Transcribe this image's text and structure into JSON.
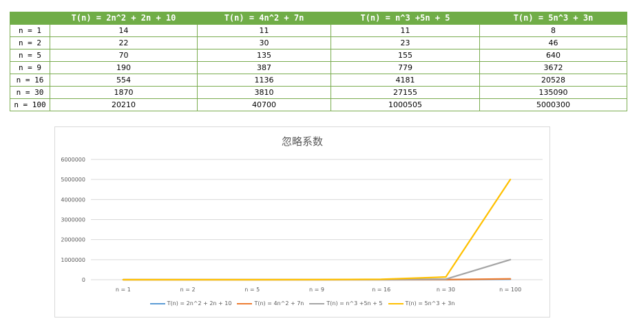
{
  "table": {
    "headers": [
      "",
      "T(n) = 2n^2 + 2n + 10",
      "T(n) = 4n^2 + 7n",
      "T(n) = n^3 +5n + 5",
      "T(n) = 5n^3 + 3n"
    ],
    "rows": [
      [
        "n = 1",
        "14",
        "11",
        "11",
        "8"
      ],
      [
        "n = 2",
        "22",
        "30",
        "23",
        "46"
      ],
      [
        "n = 5",
        "70",
        "135",
        "155",
        "640"
      ],
      [
        "n = 9",
        "190",
        "387",
        "779",
        "3672"
      ],
      [
        "n = 16",
        "554",
        "1136",
        "4181",
        "20528"
      ],
      [
        "n = 30",
        "1870",
        "3810",
        "27155",
        "135090"
      ],
      [
        "n = 100",
        "20210",
        "40700",
        "1000505",
        "5000300"
      ]
    ],
    "header_color": "#70ad47",
    "border_color": "#7aac4f"
  },
  "chart_data": {
    "type": "line",
    "title": "忽略系数",
    "categories": [
      "n = 1",
      "n = 2",
      "n = 5",
      "n = 9",
      "n = 16",
      "n = 30",
      "n = 100"
    ],
    "series": [
      {
        "name": "T(n) = 2n^2 + 2n + 10",
        "color": "#5b9bd5",
        "values": [
          14,
          22,
          70,
          190,
          554,
          1870,
          20210
        ]
      },
      {
        "name": "T(n) = 4n^2 + 7n",
        "color": "#ed7d31",
        "values": [
          11,
          30,
          135,
          387,
          1136,
          3810,
          40700
        ]
      },
      {
        "name": "T(n) = n^3 +5n + 5",
        "color": "#a5a5a5",
        "values": [
          11,
          23,
          155,
          779,
          4181,
          27155,
          1000505
        ]
      },
      {
        "name": "T(n) = 5n^3 + 3n",
        "color": "#ffc000",
        "values": [
          8,
          46,
          640,
          3672,
          20528,
          135090,
          5000300
        ]
      }
    ],
    "yticks": [
      0,
      1000000,
      2000000,
      3000000,
      4000000,
      5000000,
      6000000
    ],
    "ylim": [
      0,
      6000000
    ],
    "grid": true,
    "legend_position": "bottom",
    "xlabel": "",
    "ylabel": "",
    "gridline_color": "#d9d9d9"
  }
}
